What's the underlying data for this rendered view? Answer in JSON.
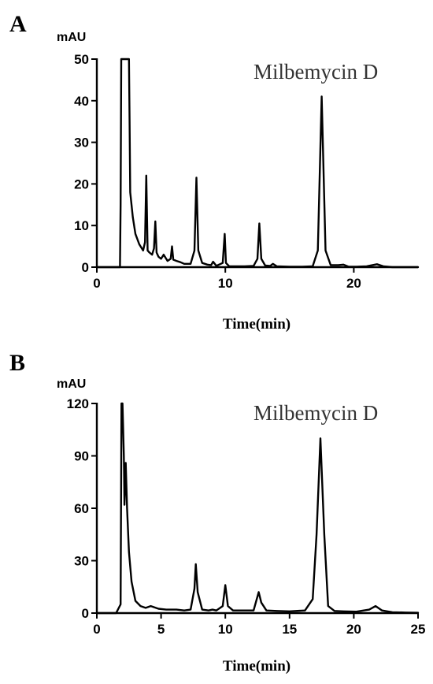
{
  "chart_data": [
    {
      "panel": "A",
      "type": "line",
      "ylabel": "mAU",
      "xlabel": "Time(min)",
      "annotation": "Milbemycin D",
      "xlim": [
        0,
        25
      ],
      "ylim": [
        0,
        50
      ],
      "xticks": [
        "0",
        "10",
        "20"
      ],
      "yticks": [
        "0",
        "10",
        "20",
        "30",
        "40",
        "50"
      ],
      "series": [
        {
          "x": [
            0,
            1.5,
            1.8,
            1.85,
            1.9,
            2.3,
            2.5,
            2.55,
            2.6,
            2.8,
            3.0,
            3.3,
            3.6,
            3.75,
            3.85,
            3.95,
            4.1,
            4.3,
            4.45,
            4.55,
            4.65,
            4.8,
            5.0,
            5.2,
            5.5,
            5.75,
            5.85,
            5.95,
            6.2,
            6.5,
            6.8,
            7.3,
            7.6,
            7.75,
            7.9,
            8.2,
            8.6,
            8.9,
            9.05,
            9.3,
            9.8,
            9.95,
            10.05,
            10.3,
            10.8,
            11.5,
            12.2,
            12.5,
            12.65,
            12.8,
            13.1,
            13.5,
            13.7,
            14.0,
            15,
            16,
            16.8,
            17.2,
            17.5,
            17.8,
            18.2,
            18.8,
            19.2,
            19.6,
            20.2,
            21.0,
            21.8,
            22.3,
            23,
            24,
            25
          ],
          "values": [
            0,
            0,
            0,
            15,
            50,
            50,
            50,
            35,
            18,
            12,
            8,
            5.5,
            4,
            6,
            22,
            4,
            3.5,
            3,
            4.5,
            11,
            3.5,
            2.5,
            2,
            3,
            1.5,
            2,
            5,
            1.8,
            1.5,
            1.2,
            0.8,
            0.8,
            4,
            21.5,
            4,
            1,
            0.6,
            0.5,
            1.3,
            0.3,
            1,
            8,
            1,
            0.2,
            0.2,
            0.2,
            0.3,
            2,
            10.5,
            2,
            0.4,
            0.3,
            0.8,
            0.2,
            0.1,
            0.1,
            0.2,
            4,
            41,
            4,
            0.5,
            0.5,
            0.6,
            0.1,
            0.1,
            0.2,
            0.7,
            0.2,
            0,
            0,
            0
          ]
        }
      ]
    },
    {
      "panel": "B",
      "type": "line",
      "ylabel": "mAU",
      "xlabel": "Time(min)",
      "annotation": "Milbemycin D",
      "xlim": [
        0,
        25
      ],
      "ylim": [
        0,
        120
      ],
      "xticks": [
        "0",
        "5",
        "10",
        "15",
        "20",
        "25"
      ],
      "yticks": [
        "0",
        "30",
        "60",
        "90",
        "120"
      ],
      "series": [
        {
          "x": [
            0,
            1.5,
            1.85,
            1.92,
            2.0,
            2.1,
            2.15,
            2.25,
            2.35,
            2.5,
            2.7,
            3.0,
            3.4,
            3.8,
            4.2,
            4.8,
            5.4,
            6.2,
            6.8,
            7.3,
            7.6,
            7.7,
            7.85,
            8.2,
            8.7,
            9.0,
            9.3,
            9.8,
            10.0,
            10.2,
            10.6,
            11.5,
            12.2,
            12.6,
            12.8,
            13.2,
            14.0,
            15.0,
            16.2,
            16.8,
            17.1,
            17.4,
            17.7,
            18.0,
            18.5,
            19.2,
            20.2,
            21.2,
            21.7,
            22.2,
            23,
            24,
            25
          ],
          "values": [
            0,
            0,
            5,
            120,
            120,
            90,
            62,
            86,
            60,
            35,
            18,
            7,
            4,
            3,
            4,
            2.5,
            2,
            2,
            1.5,
            2,
            14,
            28,
            12,
            2,
            1.5,
            2,
            1.5,
            4,
            16,
            4,
            1.5,
            1.5,
            1.5,
            12,
            6,
            1.5,
            1.2,
            1,
            1.5,
            8,
            45,
            100,
            45,
            4,
            1.2,
            1,
            0.8,
            2,
            4,
            1.5,
            0.5,
            0.3,
            0.2
          ]
        }
      ]
    }
  ]
}
